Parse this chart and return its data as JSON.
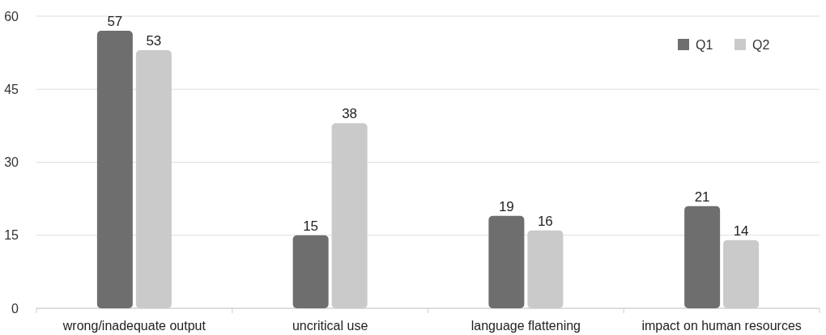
{
  "chart_data": {
    "type": "bar",
    "categories": [
      "wrong/inadequate output",
      "uncritical use",
      "language flattening",
      "impact on human resources"
    ],
    "series": [
      {
        "name": "Q1",
        "color": "#6e6e6e",
        "values": [
          57,
          15,
          19,
          21
        ]
      },
      {
        "name": "Q2",
        "color": "#cacaca",
        "values": [
          53,
          38,
          16,
          14
        ]
      }
    ],
    "ylim": [
      0,
      60
    ],
    "yticks": [
      0,
      15,
      30,
      45,
      60
    ],
    "grid": "y",
    "legend": "top right",
    "data_labels": true
  }
}
